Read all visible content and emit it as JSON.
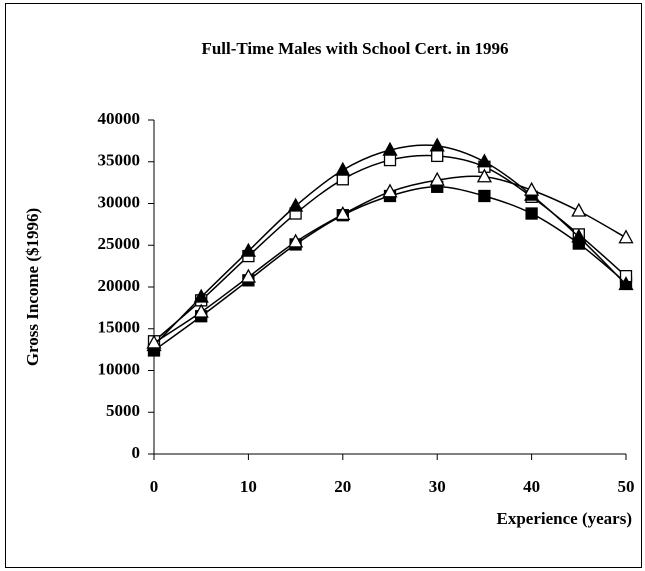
{
  "chart_data": {
    "type": "line",
    "title": "Full-Time Males with School Cert. in 1996",
    "xlabel": "Experience (years)",
    "ylabel": "Gross Income ($1996)",
    "x": [
      0,
      5,
      10,
      15,
      20,
      25,
      30,
      35,
      40,
      45,
      50
    ],
    "xlim": [
      0,
      50
    ],
    "xticks": [
      0,
      10,
      20,
      30,
      40,
      50
    ],
    "ylim": [
      0,
      40000
    ],
    "yticks": [
      0,
      5000,
      10000,
      15000,
      20000,
      25000,
      30000,
      35000,
      40000
    ],
    "grid": false,
    "series": [
      {
        "color": "#000000",
        "marker": "square",
        "marker_fill": "#000000",
        "values": [
          12400,
          16500,
          20800,
          25100,
          28600,
          30900,
          32000,
          30900,
          28800,
          25200,
          20500
        ]
      },
      {
        "color": "#000000",
        "marker": "square",
        "marker_fill": "#ffffff",
        "values": [
          13500,
          18400,
          23700,
          28800,
          32900,
          35200,
          35700,
          34400,
          30800,
          26300,
          21300
        ]
      },
      {
        "color": "#000000",
        "marker": "triangle",
        "marker_fill": "#000000",
        "values": [
          13000,
          18800,
          24300,
          29700,
          34000,
          36400,
          36900,
          35000,
          31000,
          26000,
          20300
        ]
      },
      {
        "color": "#000000",
        "marker": "triangle",
        "marker_fill": "#ffffff",
        "values": [
          13300,
          17000,
          21200,
          25400,
          28700,
          31400,
          32800,
          33200,
          31600,
          29100,
          25900
        ]
      }
    ]
  }
}
